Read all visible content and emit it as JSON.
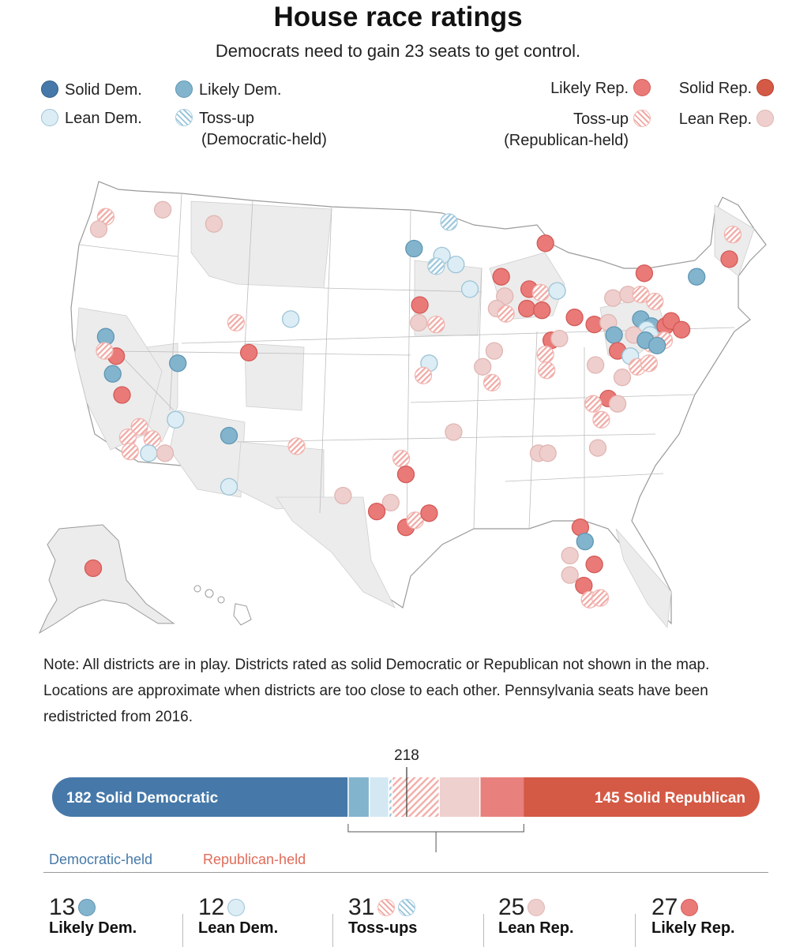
{
  "header": {
    "title": "House race ratings",
    "subtitle": "Democrats need to gain 23 seats to get control."
  },
  "legend": {
    "solid_dem": "Solid Dem.",
    "likely_dem": "Likely Dem.",
    "lean_dem": "Lean Dem.",
    "tossup_dem": "Toss-up",
    "tossup_dem_sub": "(Democratic-held)",
    "likely_rep": "Likely Rep.",
    "solid_rep": "Solid Rep.",
    "tossup_rep": "Toss-up",
    "tossup_rep_sub": "(Republican-held)",
    "lean_rep": "Lean Rep."
  },
  "colors": {
    "solid_dem": "#4679a9",
    "likely_dem": "#83b4cd",
    "lean_dem": "#dcedf5",
    "tossup_dem": "#9cc6dc",
    "tossup_rep": "#f0a9a4",
    "lean_rep": "#eecfcd",
    "likely_rep": "#ea7a77",
    "solid_rep": "#d45a45",
    "dem_text": "#4679a9",
    "rep_text": "#e06c5a"
  },
  "note": "Note: All districts are in play. Districts rated as solid Democratic or Republican not shown in the map. Locations are approximate when districts are too close to each other. Pennsylvania seats have been redistricted from 2016.",
  "seat_bar": {
    "majority_label": "218",
    "segments": [
      {
        "key": "solid_dem",
        "seats": 182,
        "label": "182 Solid Democratic"
      },
      {
        "key": "likely_dem",
        "seats": 13
      },
      {
        "key": "lean_dem",
        "seats": 12
      },
      {
        "key": "tossup_dem",
        "seats": 2
      },
      {
        "key": "tossup_rep",
        "seats": 29
      },
      {
        "key": "lean_rep",
        "seats": 25
      },
      {
        "key": "likely_rep",
        "seats": 27
      },
      {
        "key": "solid_rep",
        "seats": 145,
        "label": "145 Solid Republican"
      }
    ],
    "dem_held_label": "Democratic-held",
    "rep_held_label": "Republican-held"
  },
  "counts": [
    {
      "num": "13",
      "label": "Likely Dem.",
      "keys": [
        "likely_dem"
      ]
    },
    {
      "num": "12",
      "label": "Lean Dem.",
      "keys": [
        "lean_dem"
      ]
    },
    {
      "num": "31",
      "label": "Toss-ups",
      "keys": [
        "tossup_rep",
        "tossup_dem"
      ]
    },
    {
      "num": "25",
      "label": "Lean Rep.",
      "keys": [
        "lean_rep"
      ]
    },
    {
      "num": "27",
      "label": "Likely Rep.",
      "keys": [
        "likely_rep"
      ]
    }
  ],
  "map": {
    "districts": [
      {
        "rating": "tossup_rep",
        "lon": -122.3,
        "lat": 47.2
      },
      {
        "rating": "lean_rep",
        "lon": -122.9,
        "lat": 46.5
      },
      {
        "rating": "lean_rep",
        "lon": -117.4,
        "lat": 47.6
      },
      {
        "rating": "lean_rep",
        "lon": -113.0,
        "lat": 46.8
      },
      {
        "rating": "tossup_dem",
        "lon": -92.8,
        "lat": 46.9
      },
      {
        "rating": "likely_dem",
        "lon": -95.8,
        "lat": 45.4
      },
      {
        "rating": "lean_dem",
        "lon": -93.4,
        "lat": 45.0
      },
      {
        "rating": "tossup_dem",
        "lon": -93.9,
        "lat": 44.4
      },
      {
        "rating": "lean_dem",
        "lon": -92.2,
        "lat": 44.5
      },
      {
        "rating": "lean_dem",
        "lon": -91.0,
        "lat": 43.1
      },
      {
        "rating": "likely_rep",
        "lon": -95.3,
        "lat": 42.2
      },
      {
        "rating": "lean_rep",
        "lon": -95.4,
        "lat": 41.2
      },
      {
        "rating": "tossup_rep",
        "lon": -93.9,
        "lat": 41.1
      },
      {
        "rating": "likely_rep",
        "lon": -84.5,
        "lat": 45.7
      },
      {
        "rating": "likely_rep",
        "lon": -88.3,
        "lat": 43.8
      },
      {
        "rating": "lean_rep",
        "lon": -88.0,
        "lat": 42.7
      },
      {
        "rating": "lean_rep",
        "lon": -88.7,
        "lat": 42.0
      },
      {
        "rating": "tossup_rep",
        "lon": -87.9,
        "lat": 41.7
      },
      {
        "rating": "likely_rep",
        "lon": -85.9,
        "lat": 43.1
      },
      {
        "rating": "tossup_rep",
        "lon": -84.9,
        "lat": 42.9
      },
      {
        "rating": "lean_dem",
        "lon": -83.5,
        "lat": 43.0
      },
      {
        "rating": "likely_rep",
        "lon": -86.1,
        "lat": 42.0
      },
      {
        "rating": "likely_rep",
        "lon": -84.8,
        "lat": 41.9
      },
      {
        "rating": "likely_rep",
        "lon": -82.0,
        "lat": 41.5
      },
      {
        "rating": "likely_rep",
        "lon": -84.0,
        "lat": 40.2
      },
      {
        "rating": "lean_rep",
        "lon": -83.3,
        "lat": 40.3
      },
      {
        "rating": "tossup_rep",
        "lon": -84.5,
        "lat": 39.4
      },
      {
        "rating": "lean_rep",
        "lon": -88.9,
        "lat": 39.6
      },
      {
        "rating": "lean_rep",
        "lon": -89.9,
        "lat": 38.7
      },
      {
        "rating": "tossup_rep",
        "lon": -89.1,
        "lat": 37.8
      },
      {
        "rating": "tossup_rep",
        "lon": -84.4,
        "lat": 38.5
      },
      {
        "rating": "lean_dem",
        "lon": -94.5,
        "lat": 38.9
      },
      {
        "rating": "tossup_rep",
        "lon": -95.0,
        "lat": 38.2
      },
      {
        "rating": "lean_rep",
        "lon": -92.4,
        "lat": 35.0
      },
      {
        "rating": "likely_dem",
        "lon": -122.3,
        "lat": 40.4
      },
      {
        "rating": "likely_rep",
        "lon": -121.4,
        "lat": 39.3
      },
      {
        "rating": "tossup_rep",
        "lon": -122.4,
        "lat": 39.6
      },
      {
        "rating": "likely_dem",
        "lon": -121.7,
        "lat": 38.3
      },
      {
        "rating": "likely_rep",
        "lon": -120.9,
        "lat": 37.1
      },
      {
        "rating": "tossup_rep",
        "lon": -119.4,
        "lat": 35.3
      },
      {
        "rating": "tossup_rep",
        "lon": -120.4,
        "lat": 34.7
      },
      {
        "rating": "tossup_rep",
        "lon": -118.3,
        "lat": 34.6
      },
      {
        "rating": "tossup_rep",
        "lon": -120.2,
        "lat": 33.9
      },
      {
        "rating": "lean_dem",
        "lon": -118.6,
        "lat": 33.8
      },
      {
        "rating": "lean_rep",
        "lon": -117.2,
        "lat": 33.8
      },
      {
        "rating": "lean_dem",
        "lon": -116.3,
        "lat": 35.7
      },
      {
        "rating": "likely_dem",
        "lon": -116.1,
        "lat": 38.9
      },
      {
        "rating": "likely_dem",
        "lon": -111.7,
        "lat": 34.8
      },
      {
        "rating": "lean_dem",
        "lon": -111.7,
        "lat": 31.9
      },
      {
        "rating": "likely_rep",
        "lon": -110.0,
        "lat": 39.5
      },
      {
        "rating": "tossup_rep",
        "lon": -111.1,
        "lat": 41.2
      },
      {
        "rating": "lean_dem",
        "lon": -106.4,
        "lat": 41.4
      },
      {
        "rating": "tossup_rep",
        "lon": -105.9,
        "lat": 34.2
      },
      {
        "rating": "lean_rep",
        "lon": -101.9,
        "lat": 31.4
      },
      {
        "rating": "tossup_rep",
        "lon": -96.9,
        "lat": 33.5
      },
      {
        "rating": "likely_rep",
        "lon": -96.5,
        "lat": 32.6
      },
      {
        "rating": "lean_rep",
        "lon": -97.8,
        "lat": 31.0
      },
      {
        "rating": "likely_rep",
        "lon": -99.0,
        "lat": 30.5
      },
      {
        "rating": "likely_rep",
        "lon": -96.5,
        "lat": 29.6
      },
      {
        "rating": "tossup_rep",
        "lon": -95.7,
        "lat": 30.0
      },
      {
        "rating": "likely_rep",
        "lon": -94.5,
        "lat": 30.4
      },
      {
        "rating": "likely_rep",
        "lon": -68.7,
        "lat": 44.8
      },
      {
        "rating": "tossup_rep",
        "lon": -68.4,
        "lat": 46.2
      },
      {
        "rating": "likely_dem",
        "lon": -71.5,
        "lat": 43.8
      },
      {
        "rating": "likely_rep",
        "lon": -76.0,
        "lat": 44.0
      },
      {
        "rating": "lean_rep",
        "lon": -78.7,
        "lat": 42.6
      },
      {
        "rating": "lean_rep",
        "lon": -77.4,
        "lat": 42.8
      },
      {
        "rating": "tossup_rep",
        "lon": -76.3,
        "lat": 42.8
      },
      {
        "rating": "tossup_rep",
        "lon": -75.1,
        "lat": 42.4
      },
      {
        "rating": "likely_rep",
        "lon": -80.3,
        "lat": 41.1
      },
      {
        "rating": "lean_rep",
        "lon": -79.1,
        "lat": 41.2
      },
      {
        "rating": "likely_dem",
        "lon": -76.3,
        "lat": 41.4
      },
      {
        "rating": "likely_dem",
        "lon": -75.4,
        "lat": 41.0
      },
      {
        "rating": "likely_dem",
        "lon": -78.6,
        "lat": 40.5
      },
      {
        "rating": "lean_dem",
        "lon": -75.8,
        "lat": 40.8
      },
      {
        "rating": "likely_rep",
        "lon": -74.2,
        "lat": 41.0
      },
      {
        "rating": "likely_rep",
        "lon": -73.7,
        "lat": 41.3
      },
      {
        "rating": "likely_rep",
        "lon": -72.8,
        "lat": 40.8
      },
      {
        "rating": "lean_dem",
        "lon": -75.5,
        "lat": 40.5
      },
      {
        "rating": "tossup_rep",
        "lon": -75.4,
        "lat": 40.0
      },
      {
        "rating": "tossup_rep",
        "lon": -74.3,
        "lat": 40.2
      },
      {
        "rating": "lean_rep",
        "lon": -76.9,
        "lat": 40.5
      },
      {
        "rating": "likely_dem",
        "lon": -75.9,
        "lat": 40.2
      },
      {
        "rating": "likely_dem",
        "lon": -74.9,
        "lat": 39.9
      },
      {
        "rating": "likely_rep",
        "lon": -78.3,
        "lat": 39.6
      },
      {
        "rating": "lean_dem",
        "lon": -77.2,
        "lat": 39.3
      },
      {
        "rating": "tossup_rep",
        "lon": -76.6,
        "lat": 38.7
      },
      {
        "rating": "lean_rep",
        "lon": -80.2,
        "lat": 38.8
      },
      {
        "rating": "lean_rep",
        "lon": -77.9,
        "lat": 38.1
      },
      {
        "rating": "tossup_rep",
        "lon": -75.6,
        "lat": 38.9
      },
      {
        "rating": "likely_rep",
        "lon": -79.1,
        "lat": 36.9
      },
      {
        "rating": "tossup_rep",
        "lon": -80.4,
        "lat": 36.6
      },
      {
        "rating": "lean_rep",
        "lon": -78.3,
        "lat": 36.6
      },
      {
        "rating": "tossup_rep",
        "lon": -79.7,
        "lat": 35.7
      },
      {
        "rating": "lean_rep",
        "lon": -80.0,
        "lat": 34.1
      },
      {
        "rating": "lean_rep",
        "lon": -85.1,
        "lat": 33.8
      },
      {
        "rating": "lean_rep",
        "lon": -84.3,
        "lat": 33.8
      },
      {
        "rating": "likely_rep",
        "lon": -81.5,
        "lat": 29.6
      },
      {
        "rating": "likely_dem",
        "lon": -81.1,
        "lat": 28.8
      },
      {
        "rating": "lean_rep",
        "lon": -82.4,
        "lat": 28.0
      },
      {
        "rating": "likely_rep",
        "lon": -80.3,
        "lat": 27.5
      },
      {
        "rating": "lean_rep",
        "lon": -82.4,
        "lat": 26.9
      },
      {
        "rating": "likely_rep",
        "lon": -81.2,
        "lat": 26.3
      },
      {
        "rating": "tossup_rep",
        "lon": -80.7,
        "lat": 25.5
      },
      {
        "rating": "tossup_rep",
        "lon": -79.8,
        "lat": 25.6
      }
    ],
    "alaska_districts": [
      {
        "rating": "likely_rep"
      }
    ]
  }
}
